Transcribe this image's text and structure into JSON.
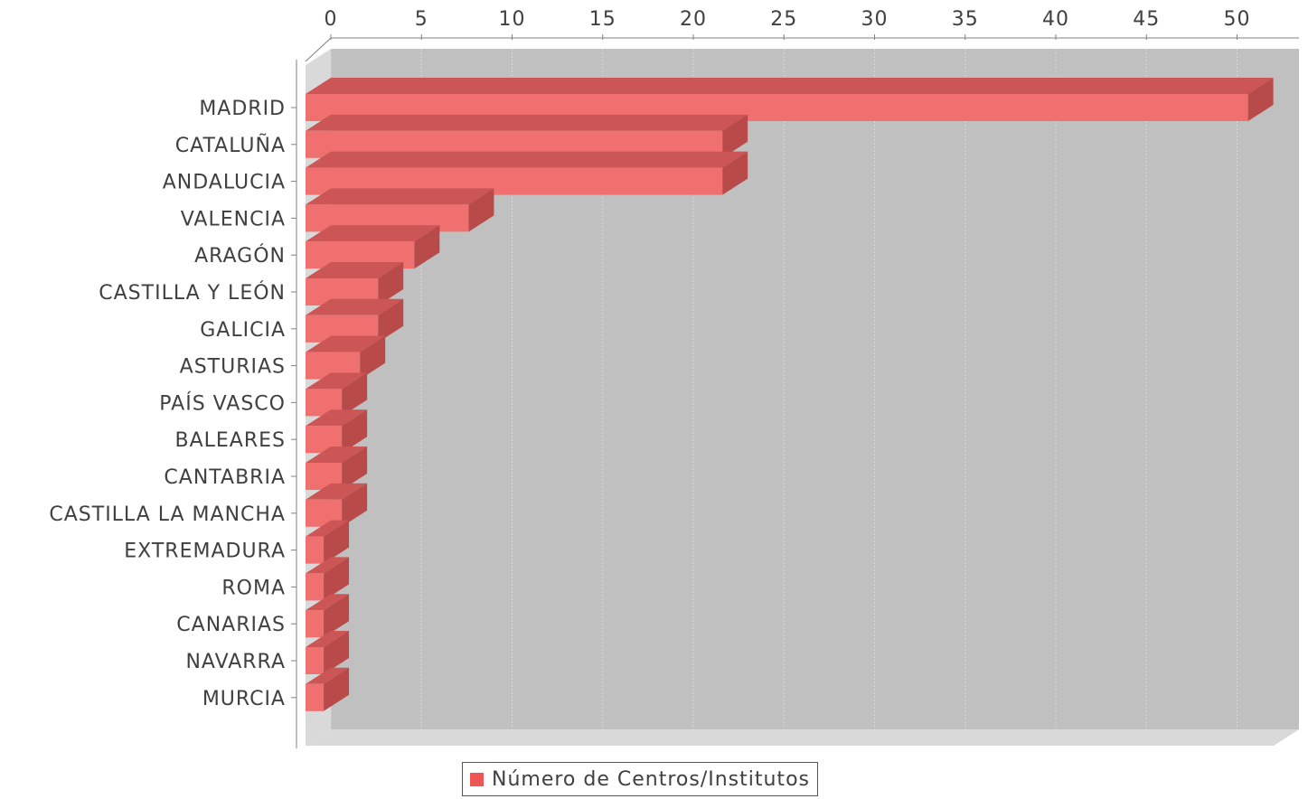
{
  "chart_data": {
    "type": "bar",
    "orientation": "horizontal",
    "three_d": true,
    "categories": [
      "MADRID",
      "CATALUÑA",
      "ANDALUCIA",
      "VALENCIA",
      "ARAGÓN",
      "CASTILLA Y LEÓN",
      "GALICIA",
      "ASTURIAS",
      "PAÍS VASCO",
      "BALEARES",
      "CANTABRIA",
      "CASTILLA LA MANCHA",
      "EXTREMADURA",
      "ROMA",
      "CANARIAS",
      "NAVARRA",
      "MURCIA"
    ],
    "series": [
      {
        "name": "Número de Centros/Institutos",
        "values": [
          52,
          23,
          23,
          9,
          6,
          4,
          4,
          3,
          2,
          2,
          2,
          2,
          1,
          1,
          1,
          1,
          1
        ]
      }
    ],
    "xlim": [
      0,
      53
    ],
    "xticks": [
      0,
      5,
      10,
      15,
      20,
      25,
      30,
      35,
      40,
      45,
      50
    ],
    "xtick_labels": [
      "0",
      "5",
      "10",
      "15",
      "20",
      "25",
      "30",
      "35",
      "40",
      "45",
      "50"
    ],
    "x_axis_position": "top",
    "grid": true,
    "legend_position": "bottom-center",
    "colors": {
      "bar_face": "#f07070",
      "bar_top": "#cc5555",
      "bar_side": "#b84a4a",
      "plot_back": "#c0c0c0",
      "plot_floor": "#d9d9d9",
      "legend_swatch": "#ee5555"
    }
  }
}
